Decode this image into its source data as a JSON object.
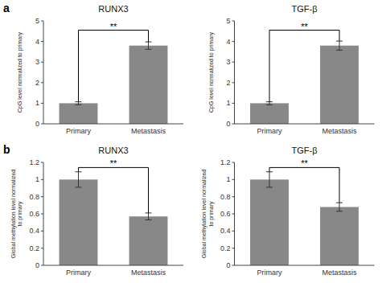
{
  "chart_data": [
    {
      "type": "bar",
      "title": "RUNX3",
      "panel_label": "a",
      "categories": [
        "Primary",
        "Metastasis"
      ],
      "values": [
        1.0,
        3.8
      ],
      "errors": [
        0.07,
        0.18
      ],
      "ylabel": "CpG level normalized to primary",
      "ylim": [
        0,
        5
      ],
      "yticks": [
        0,
        1,
        2,
        3,
        4,
        5
      ],
      "color": "#888888",
      "grid": false,
      "significance": {
        "label": "**",
        "y": 4.55,
        "y_left": 1.07,
        "y_right": 3.98
      }
    },
    {
      "type": "bar",
      "title": "TGF-β",
      "categories": [
        "Primary",
        "Metastasis"
      ],
      "values": [
        1.0,
        3.8
      ],
      "errors": [
        0.07,
        0.22
      ],
      "ylabel": "CpG level normalized to primary",
      "ylim": [
        0,
        5
      ],
      "yticks": [
        0,
        1,
        2,
        3,
        4,
        5
      ],
      "color": "#888888",
      "grid": false,
      "significance": {
        "label": "**",
        "y": 4.55,
        "y_left": 1.07,
        "y_right": 4.02
      }
    },
    {
      "type": "bar",
      "title": "RUNX3",
      "panel_label": "b",
      "categories": [
        "Primary",
        "Metastasis"
      ],
      "values": [
        1.0,
        0.57
      ],
      "errors": [
        0.09,
        0.04
      ],
      "ylabel": "Global methylation level normalized\nto primary",
      "ylim": [
        0,
        1.2
      ],
      "yticks": [
        0,
        0.2,
        0.4,
        0.6,
        0.8,
        1.0,
        1.2
      ],
      "color": "#888888",
      "grid": false,
      "significance": {
        "label": "**",
        "y": 1.14,
        "y_left": 1.09,
        "y_right": 0.61
      }
    },
    {
      "type": "bar",
      "title": "TGF-β",
      "categories": [
        "Primary",
        "Metastasis"
      ],
      "values": [
        1.0,
        0.68
      ],
      "errors": [
        0.09,
        0.05
      ],
      "ylabel": "Global methylation level normalized\nto primary",
      "ylim": [
        0,
        1.2
      ],
      "yticks": [
        0,
        0.2,
        0.4,
        0.6,
        0.8,
        1.0,
        1.2
      ],
      "color": "#888888",
      "grid": false,
      "significance": {
        "label": "**",
        "y": 1.14,
        "y_left": 1.09,
        "y_right": 0.73
      }
    }
  ]
}
